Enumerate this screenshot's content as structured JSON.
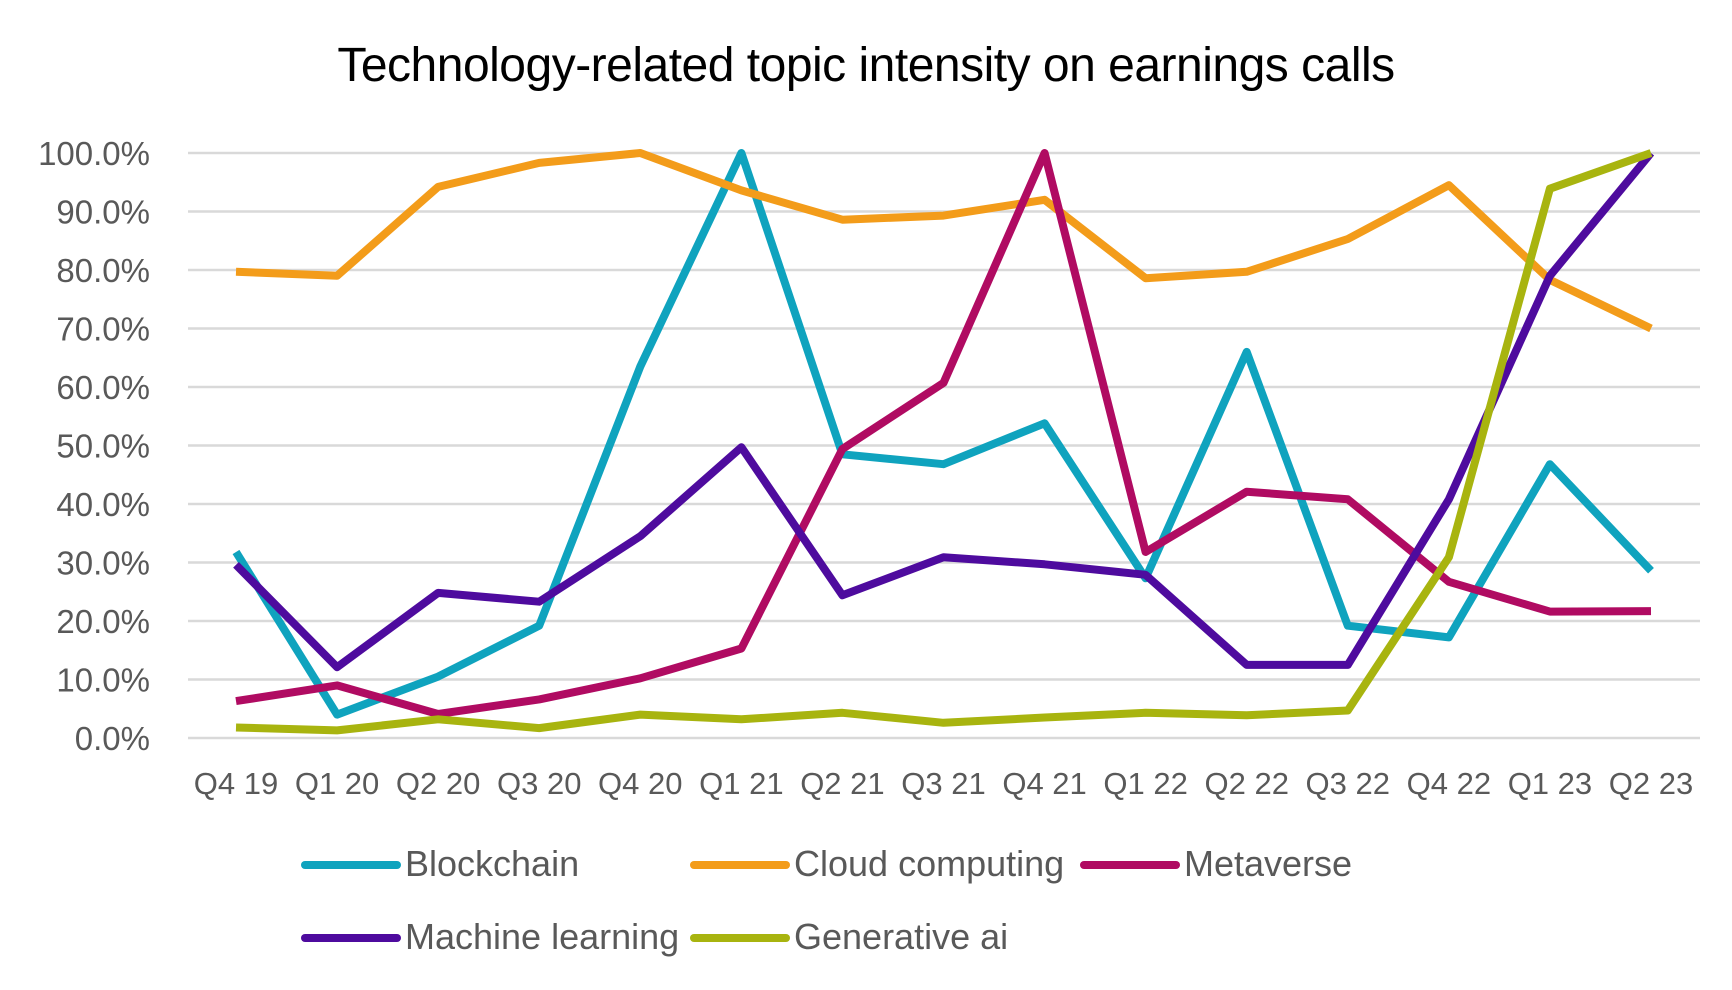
{
  "chart_data": {
    "type": "line",
    "title": "Technology-related topic intensity on earnings calls",
    "categories": [
      "Q4 19",
      "Q1 20",
      "Q2 20",
      "Q3 20",
      "Q4 20",
      "Q1 21",
      "Q2 21",
      "Q3 21",
      "Q4 21",
      "Q1 22",
      "Q2 22",
      "Q3 22",
      "Q4 22",
      "Q1 23",
      "Q2 23"
    ],
    "y_tick_labels": [
      "0.0%",
      "10.0%",
      "20.0%",
      "30.0%",
      "40.0%",
      "50.0%",
      "60.0%",
      "70.0%",
      "80.0%",
      "90.0%",
      "100.0%"
    ],
    "ylim": [
      0,
      100
    ],
    "grid": true,
    "legend_position": "bottom",
    "series": [
      {
        "name": "Blockchain",
        "color": "#0FA3BE",
        "values": [
          31.8,
          4.0,
          10.5,
          19.2,
          63.5,
          100.0,
          48.5,
          46.8,
          53.8,
          27.3,
          66.0,
          19.2,
          17.2,
          46.8,
          28.6
        ]
      },
      {
        "name": "Cloud computing",
        "color": "#F39C1A",
        "values": [
          79.7,
          79.0,
          94.2,
          98.3,
          100.0,
          93.6,
          88.6,
          89.3,
          92.0,
          78.6,
          79.7,
          85.3,
          94.5,
          78.3,
          70.0
        ]
      },
      {
        "name": "Metaverse",
        "color": "#B00B62",
        "values": [
          6.3,
          9.0,
          4.1,
          6.6,
          10.2,
          15.3,
          49.4,
          60.7,
          100.0,
          31.8,
          42.1,
          40.8,
          26.7,
          21.6,
          21.7
        ]
      },
      {
        "name": "Machine learning",
        "color": "#4E0B9E",
        "values": [
          29.6,
          12.1,
          24.8,
          23.3,
          34.5,
          49.7,
          24.4,
          30.9,
          29.7,
          27.9,
          12.5,
          12.5,
          40.8,
          79.0,
          100.0
        ]
      },
      {
        "name": "Generative ai",
        "color": "#A8B40F",
        "values": [
          1.8,
          1.3,
          3.2,
          1.7,
          4.0,
          3.2,
          4.3,
          2.6,
          3.5,
          4.3,
          3.9,
          4.7,
          30.9,
          93.9,
          100.0
        ]
      }
    ]
  }
}
